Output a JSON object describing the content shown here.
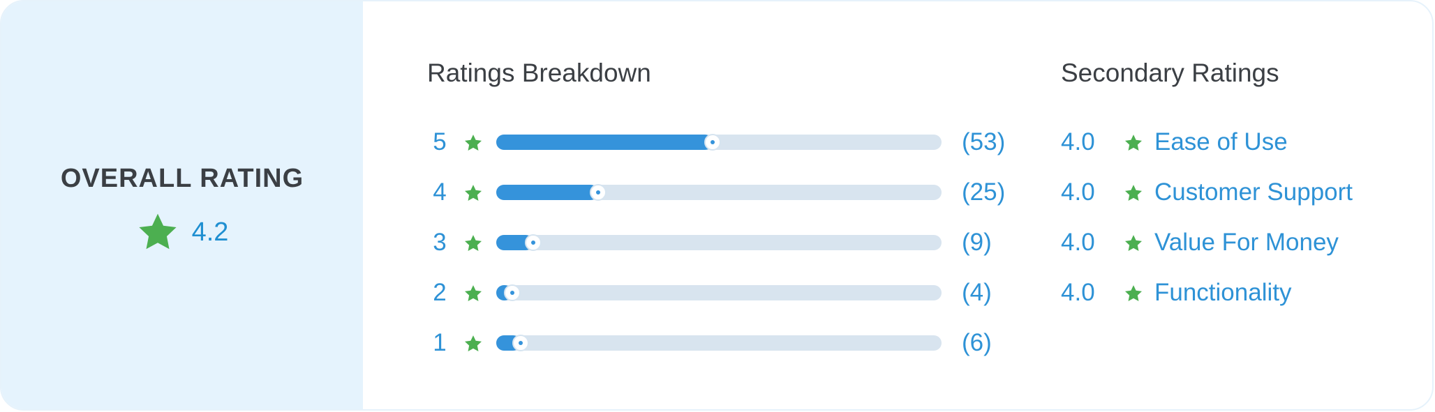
{
  "overall": {
    "title": "OVERALL RATING",
    "value": "4.2",
    "icon": "star-icon"
  },
  "breakdown": {
    "title": "Ratings Breakdown",
    "rows": [
      {
        "stars": "5",
        "count": "(53)",
        "fraction": 0.4862
      },
      {
        "stars": "4",
        "count": "(25)",
        "fraction": 0.2294
      },
      {
        "stars": "3",
        "count": "(9)",
        "fraction": 0.0826
      },
      {
        "stars": "2",
        "count": "(4)",
        "fraction": 0.0367
      },
      {
        "stars": "1",
        "count": "(6)",
        "fraction": 0.055
      }
    ]
  },
  "secondary": {
    "title": "Secondary Ratings",
    "rows": [
      {
        "value": "4.0",
        "label": "Ease of Use"
      },
      {
        "value": "4.0",
        "label": "Customer Support"
      },
      {
        "value": "4.0",
        "label": "Value For Money"
      },
      {
        "value": "4.0",
        "label": "Functionality"
      }
    ]
  },
  "colors": {
    "accent": "#2e92d6",
    "bar_fill": "#3593db",
    "bar_track": "#d8e4ef",
    "star": "#4caf50",
    "left_panel": "#e5f3fd",
    "heading": "#3b3f44"
  }
}
